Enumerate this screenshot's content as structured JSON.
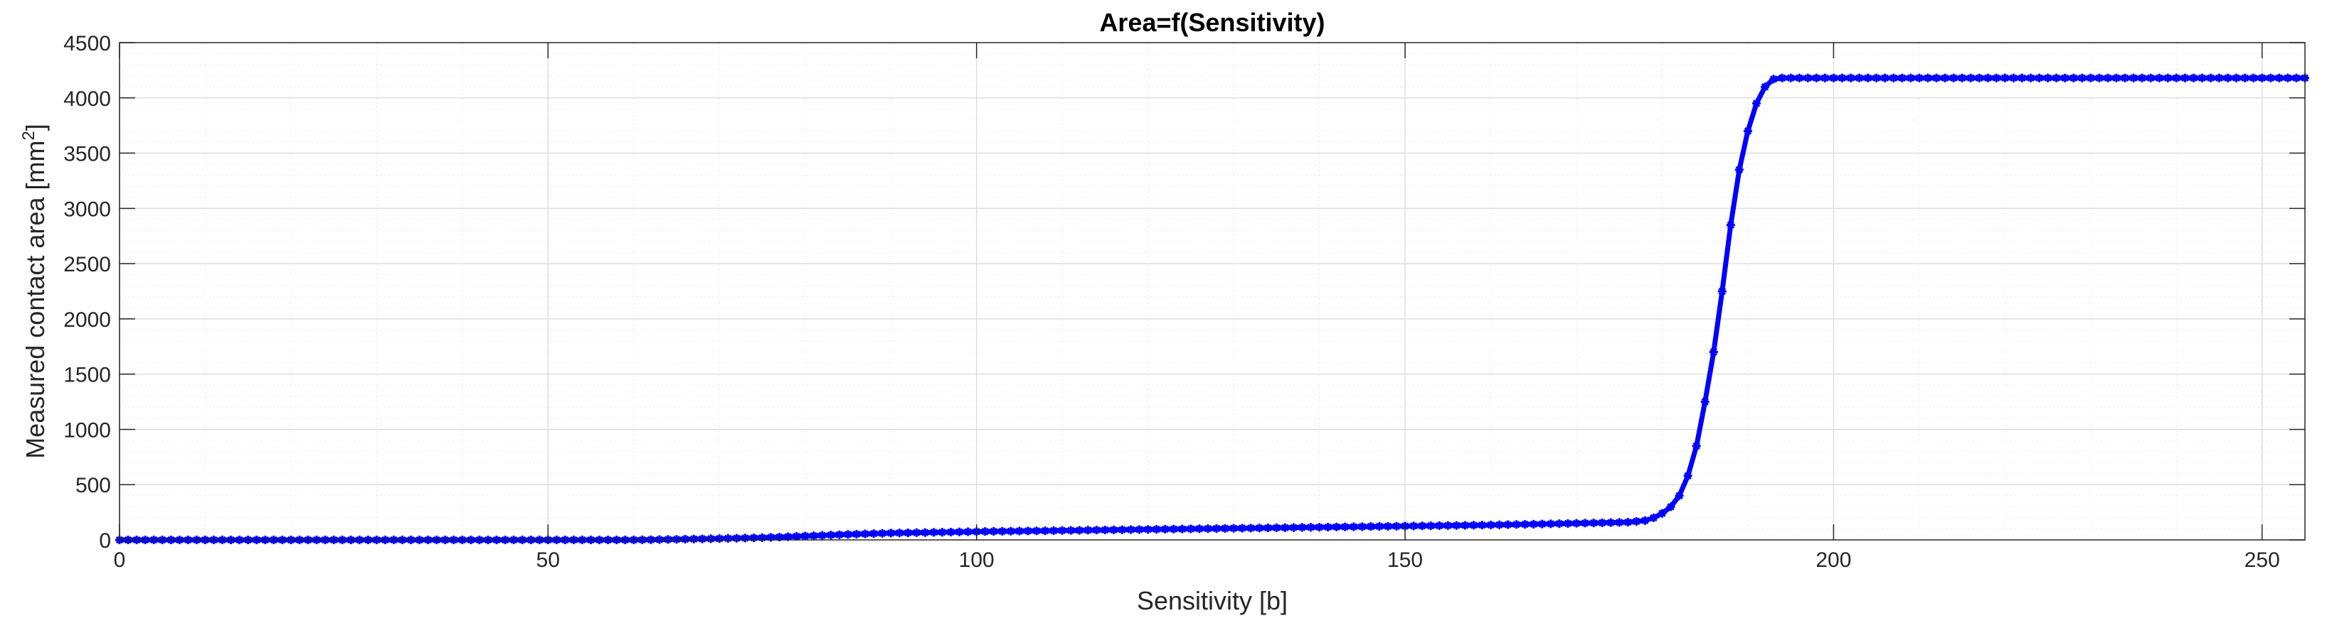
{
  "chart_data": {
    "type": "line",
    "title": "Area=f(Sensitivity)",
    "xlabel": "Sensitivity [b]",
    "ylabel": "Measured contact area [mm",
    "ylabel_superscript": "2",
    "ylabel_suffix": "]",
    "xlim": [
      0,
      255
    ],
    "ylim": [
      0,
      4500
    ],
    "xticks": [
      0,
      50,
      100,
      150,
      200,
      250
    ],
    "yticks": [
      0,
      500,
      1000,
      1500,
      2000,
      2500,
      3000,
      3500,
      4000,
      4500
    ],
    "grid": true,
    "minor_grid": true,
    "marker": "asterisk",
    "colors": {
      "series": "#0000ff",
      "grid": "#dfdfdf",
      "axis": "#262626"
    },
    "series": [
      {
        "keypoints": [
          [
            0,
            0
          ],
          [
            60,
            0
          ],
          [
            65,
            5
          ],
          [
            70,
            12
          ],
          [
            75,
            20
          ],
          [
            80,
            35
          ],
          [
            85,
            50
          ],
          [
            90,
            62
          ],
          [
            95,
            68
          ],
          [
            100,
            75
          ],
          [
            110,
            85
          ],
          [
            120,
            95
          ],
          [
            130,
            105
          ],
          [
            140,
            115
          ],
          [
            150,
            125
          ],
          [
            160,
            135
          ],
          [
            170,
            150
          ],
          [
            176,
            160
          ],
          [
            178,
            175
          ],
          [
            179,
            200
          ],
          [
            180,
            240
          ],
          [
            181,
            300
          ],
          [
            182,
            400
          ],
          [
            183,
            580
          ],
          [
            184,
            850
          ],
          [
            185,
            1250
          ],
          [
            186,
            1700
          ],
          [
            187,
            2250
          ],
          [
            188,
            2850
          ],
          [
            189,
            3350
          ],
          [
            190,
            3700
          ],
          [
            191,
            3950
          ],
          [
            192,
            4100
          ],
          [
            193,
            4170
          ],
          [
            194,
            4180
          ],
          [
            200,
            4180
          ],
          [
            255,
            4180
          ]
        ]
      }
    ]
  }
}
